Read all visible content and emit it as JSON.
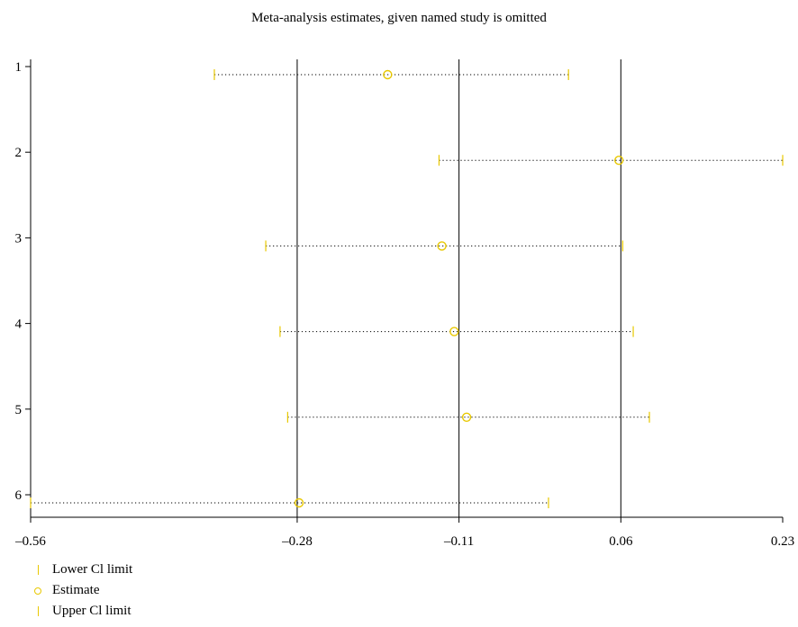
{
  "chart_data": {
    "type": "forest",
    "title": "Meta-analysis estimates, given named study is omitted",
    "studies": [
      "1",
      "2",
      "3",
      "4",
      "5",
      "6"
    ],
    "estimate": [
      -0.185,
      0.058,
      -0.128,
      -0.115,
      -0.102,
      -0.278
    ],
    "lower_ci": [
      -0.367,
      -0.131,
      -0.313,
      -0.298,
      -0.29,
      -0.56
    ],
    "upper_ci": [
      0.005,
      0.23,
      0.062,
      0.073,
      0.09,
      -0.016
    ],
    "x_ticks": [
      -0.56,
      -0.28,
      -0.11,
      0.06,
      0.23
    ],
    "x_tick_labels": [
      "–0.56",
      "–0.28",
      "–0.11",
      "0.06",
      "0.23"
    ],
    "vertical_reference_lines": [
      -0.28,
      -0.11,
      0.06
    ],
    "xlim": [
      -0.56,
      0.23
    ],
    "legend": [
      "Lower Cl limit",
      "Estimate",
      "Upper Cl limit"
    ],
    "legend_position": "bottom-left",
    "marker_color": "#e8c800",
    "line_color": "#000000"
  }
}
